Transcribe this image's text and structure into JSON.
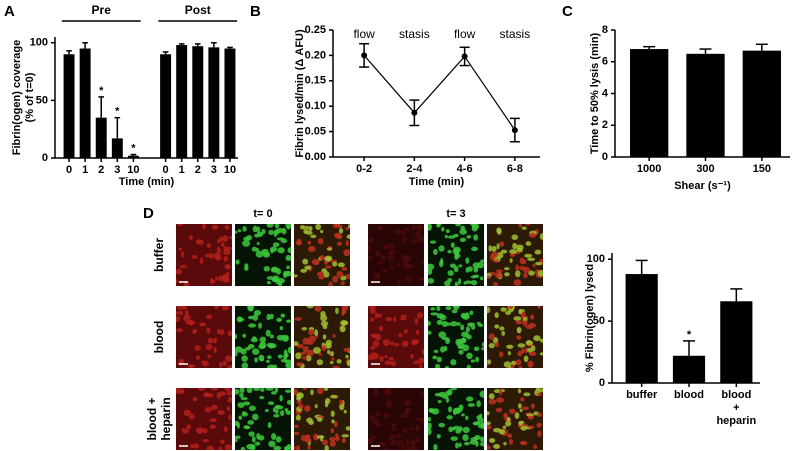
{
  "chart_data": [
    {
      "type": "bar",
      "panel_label": "A",
      "y_label": [
        "Fibrin(ogen) coverage",
        "(% of t=0)"
      ],
      "x_label": "Time (min)",
      "color": "#000000",
      "ylim": [
        0,
        105
      ],
      "yticks": [
        0,
        50,
        100
      ],
      "groups": [
        {
          "name": "Pre",
          "categories": [
            "0",
            "1",
            "2",
            "3",
            "10"
          ],
          "values": [
            90,
            95,
            35,
            17,
            2
          ],
          "errors": [
            3,
            5,
            18,
            18,
            1
          ],
          "significance": [
            null,
            null,
            "*",
            "*",
            "*"
          ]
        },
        {
          "name": "Post",
          "categories": [
            "0",
            "1",
            "2",
            "3",
            "10"
          ],
          "values": [
            90,
            98,
            97,
            96,
            95
          ],
          "errors": [
            2,
            1,
            2,
            4,
            1
          ]
        }
      ]
    },
    {
      "type": "line",
      "panel_label": "B",
      "y_label": [
        "Fibrin lysed/min (Δ AFU)"
      ],
      "x_label": "Time (min)",
      "color": "#000000",
      "categories": [
        "0-2",
        "2-4",
        "4-6",
        "6-8"
      ],
      "values": [
        0.2,
        0.087,
        0.198,
        0.053
      ],
      "errors": [
        0.023,
        0.025,
        0.018,
        0.023
      ],
      "annotations": [
        "flow",
        "stasis",
        "flow",
        "stasis"
      ],
      "ylim": [
        0,
        0.25
      ],
      "yticks": [
        {
          "value": 0,
          "label": "0.00"
        },
        {
          "value": 0.05,
          "label": "0.05"
        },
        {
          "value": 0.1,
          "label": "0.10"
        },
        {
          "value": 0.15,
          "label": "0.15"
        },
        {
          "value": 0.2,
          "label": "0.20"
        },
        {
          "value": 0.25,
          "label": "0.25"
        }
      ]
    },
    {
      "type": "bar",
      "panel_label": "C",
      "y_label": [
        "Time to 50% lysis (min)"
      ],
      "x_label": "Shear (s⁻¹)",
      "color": "#000000",
      "categories": [
        "1000",
        "300",
        "150"
      ],
      "values": [
        6.8,
        6.5,
        6.7
      ],
      "errors": [
        0.15,
        0.3,
        0.4
      ],
      "ylim": [
        0,
        8
      ],
      "yticks": [
        0,
        2,
        4,
        6,
        8
      ]
    },
    {
      "type": "bar",
      "y_label": [
        "% Fibrin(ogen) lysed"
      ],
      "color": "#000000",
      "categories": [
        "buffer",
        "blood",
        "blood + heparin"
      ],
      "values": [
        88,
        22,
        66
      ],
      "errors": [
        11,
        12,
        10
      ],
      "significance": [
        null,
        "*",
        null
      ],
      "ylim": [
        0,
        105
      ],
      "yticks": [
        0,
        50,
        100
      ]
    }
  ],
  "image_grid": {
    "panel_label": "D",
    "columns": [
      "t= 0",
      "t= 3"
    ],
    "rows": [
      "buffer",
      "blood",
      "blood + heparin"
    ]
  }
}
